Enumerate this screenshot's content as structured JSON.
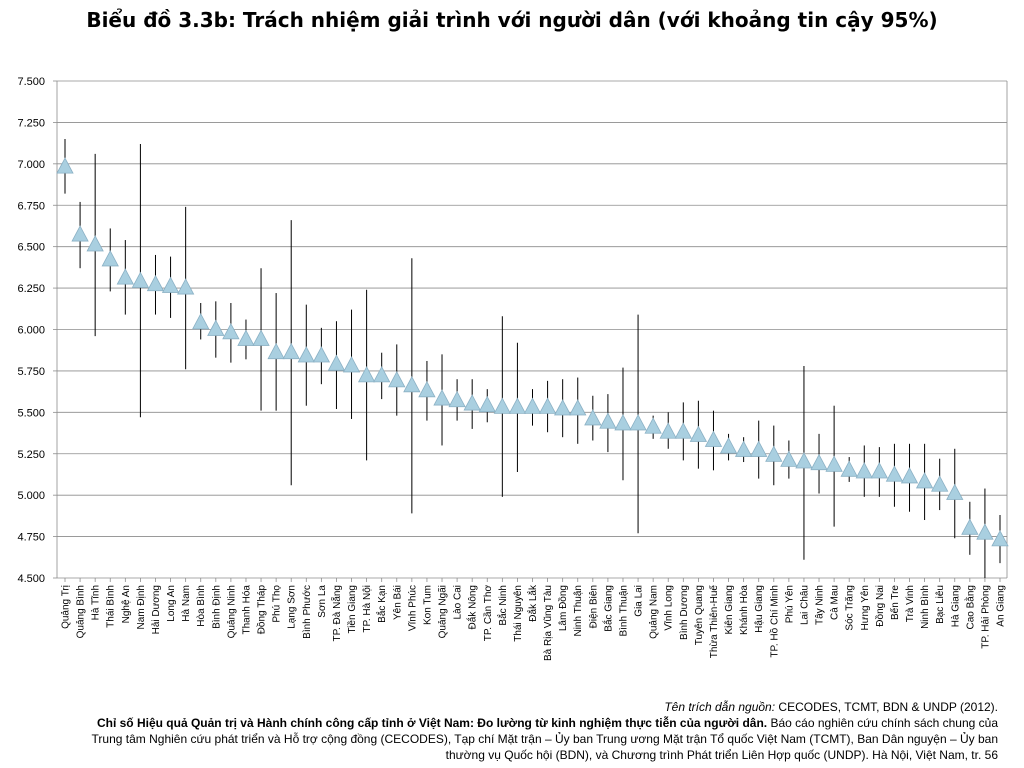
{
  "chart_data": {
    "type": "scatter",
    "title": "Biểu đồ 3.3b: Trách nhiệm giải trình với người dân (với khoảng tin cậy 95%)",
    "xlabel": "",
    "ylabel": "",
    "ylim": [
      4.5,
      7.5
    ],
    "yticks": [
      "4.500",
      "4.750",
      "5.000",
      "5.250",
      "5.500",
      "5.750",
      "6.000",
      "6.250",
      "6.500",
      "6.750",
      "7.000",
      "7.250",
      "7.500"
    ],
    "grid": true,
    "marker": "triangle",
    "marker_color": "#a9cfe0",
    "error_bar_color": "#000000",
    "points": [
      {
        "province": "Quảng Trị",
        "value": 6.98,
        "lo": 6.82,
        "hi": 7.15
      },
      {
        "province": "Quảng Bình",
        "value": 6.57,
        "lo": 6.37,
        "hi": 6.77
      },
      {
        "province": "Hà Tĩnh",
        "value": 6.51,
        "lo": 5.96,
        "hi": 7.06
      },
      {
        "province": "Thái Bình",
        "value": 6.42,
        "lo": 6.23,
        "hi": 6.61
      },
      {
        "province": "Nghệ An",
        "value": 6.31,
        "lo": 6.09,
        "hi": 6.54
      },
      {
        "province": "Nam Định",
        "value": 6.29,
        "lo": 5.47,
        "hi": 7.12
      },
      {
        "province": "Hải Dương",
        "value": 6.27,
        "lo": 6.09,
        "hi": 6.45
      },
      {
        "province": "Long An",
        "value": 6.26,
        "lo": 6.07,
        "hi": 6.44
      },
      {
        "province": "Hà Nam",
        "value": 6.25,
        "lo": 5.76,
        "hi": 6.74
      },
      {
        "province": "Hòa Bình",
        "value": 6.04,
        "lo": 5.94,
        "hi": 6.16
      },
      {
        "province": "Bình Định",
        "value": 6.0,
        "lo": 5.83,
        "hi": 6.17
      },
      {
        "province": "Quảng Ninh",
        "value": 5.98,
        "lo": 5.8,
        "hi": 6.16
      },
      {
        "province": "Thanh Hóa",
        "value": 5.94,
        "lo": 5.82,
        "hi": 6.06
      },
      {
        "province": "Đồng Tháp",
        "value": 5.94,
        "lo": 5.51,
        "hi": 6.37
      },
      {
        "province": "Phú Thọ",
        "value": 5.86,
        "lo": 5.51,
        "hi": 6.22
      },
      {
        "province": "Lạng Sơn",
        "value": 5.86,
        "lo": 5.06,
        "hi": 6.66
      },
      {
        "province": "Bình Phước",
        "value": 5.84,
        "lo": 5.54,
        "hi": 6.15
      },
      {
        "province": "Sơn La",
        "value": 5.84,
        "lo": 5.67,
        "hi": 6.01
      },
      {
        "province": "TP. Đà Nẵng",
        "value": 5.79,
        "lo": 5.52,
        "hi": 6.05
      },
      {
        "province": "Tiền Giang",
        "value": 5.78,
        "lo": 5.46,
        "hi": 6.12
      },
      {
        "province": "TP. Hà Nội",
        "value": 5.72,
        "lo": 5.21,
        "hi": 6.24
      },
      {
        "province": "Bắc Kạn",
        "value": 5.72,
        "lo": 5.58,
        "hi": 5.86
      },
      {
        "province": "Yên Bái",
        "value": 5.69,
        "lo": 5.48,
        "hi": 5.91
      },
      {
        "province": "Vĩnh Phúc",
        "value": 5.66,
        "lo": 4.89,
        "hi": 6.43
      },
      {
        "province": "Kon Tum",
        "value": 5.63,
        "lo": 5.45,
        "hi": 5.81
      },
      {
        "province": "Quảng Ngãi",
        "value": 5.58,
        "lo": 5.3,
        "hi": 5.85
      },
      {
        "province": "Lào Cai",
        "value": 5.57,
        "lo": 5.45,
        "hi": 5.7
      },
      {
        "province": "Đắk Nông",
        "value": 5.55,
        "lo": 5.4,
        "hi": 5.7
      },
      {
        "province": "TP. Cần Thơ",
        "value": 5.54,
        "lo": 5.44,
        "hi": 5.64
      },
      {
        "province": "Bắc Ninh",
        "value": 5.53,
        "lo": 4.99,
        "hi": 6.08
      },
      {
        "province": "Thái Nguyên",
        "value": 5.53,
        "lo": 5.14,
        "hi": 5.92
      },
      {
        "province": "Đắk Lắk",
        "value": 5.53,
        "lo": 5.42,
        "hi": 5.64
      },
      {
        "province": "Bà Rịa Vũng Tàu",
        "value": 5.53,
        "lo": 5.38,
        "hi": 5.69
      },
      {
        "province": "Lâm Đồng",
        "value": 5.52,
        "lo": 5.35,
        "hi": 5.7
      },
      {
        "province": "Ninh Thuận",
        "value": 5.52,
        "lo": 5.31,
        "hi": 5.71
      },
      {
        "province": "Điện Biên",
        "value": 5.46,
        "lo": 5.33,
        "hi": 5.6
      },
      {
        "province": "Bắc Giang",
        "value": 5.44,
        "lo": 5.26,
        "hi": 5.61
      },
      {
        "province": "Bình Thuận",
        "value": 5.43,
        "lo": 5.09,
        "hi": 5.77
      },
      {
        "province": "Gia Lai",
        "value": 5.43,
        "lo": 4.77,
        "hi": 6.09
      },
      {
        "province": "Quảng Nam",
        "value": 5.41,
        "lo": 5.34,
        "hi": 5.48
      },
      {
        "province": "Vĩnh Long",
        "value": 5.38,
        "lo": 5.28,
        "hi": 5.5
      },
      {
        "province": "Bình Dương",
        "value": 5.38,
        "lo": 5.21,
        "hi": 5.56
      },
      {
        "province": "Tuyên Quang",
        "value": 5.36,
        "lo": 5.16,
        "hi": 5.57
      },
      {
        "province": "Thừa Thiên-Huế",
        "value": 5.33,
        "lo": 5.15,
        "hi": 5.51
      },
      {
        "province": "Kiên Giang",
        "value": 5.29,
        "lo": 5.21,
        "hi": 5.37
      },
      {
        "province": "Khánh Hòa",
        "value": 5.27,
        "lo": 5.2,
        "hi": 5.35
      },
      {
        "province": "Hậu Giang",
        "value": 5.27,
        "lo": 5.1,
        "hi": 5.45
      },
      {
        "province": "TP. Hồ Chí Minh",
        "value": 5.24,
        "lo": 5.06,
        "hi": 5.42
      },
      {
        "province": "Phú Yên",
        "value": 5.21,
        "lo": 5.1,
        "hi": 5.33
      },
      {
        "province": "Lai Châu",
        "value": 5.2,
        "lo": 4.61,
        "hi": 5.78
      },
      {
        "province": "Tây Ninh",
        "value": 5.19,
        "lo": 5.01,
        "hi": 5.37
      },
      {
        "province": "Cà Mau",
        "value": 5.18,
        "lo": 4.81,
        "hi": 5.54
      },
      {
        "province": "Sóc Trăng",
        "value": 5.15,
        "lo": 5.08,
        "hi": 5.23
      },
      {
        "province": "Hưng Yên",
        "value": 5.14,
        "lo": 4.99,
        "hi": 5.3
      },
      {
        "province": "Đồng Nai",
        "value": 5.14,
        "lo": 4.99,
        "hi": 5.29
      },
      {
        "province": "Bến Tre",
        "value": 5.12,
        "lo": 4.93,
        "hi": 5.31
      },
      {
        "province": "Trà Vinh",
        "value": 5.11,
        "lo": 4.9,
        "hi": 5.31
      },
      {
        "province": "Ninh Bình",
        "value": 5.08,
        "lo": 4.85,
        "hi": 5.31
      },
      {
        "province": "Bạc Liêu",
        "value": 5.06,
        "lo": 4.91,
        "hi": 5.22
      },
      {
        "province": "Hà Giang",
        "value": 5.01,
        "lo": 4.74,
        "hi": 5.28
      },
      {
        "province": "Cao Bằng",
        "value": 4.8,
        "lo": 4.64,
        "hi": 4.96
      },
      {
        "province": "TP. Hải Phòng",
        "value": 4.77,
        "lo": 4.5,
        "hi": 5.04
      },
      {
        "province": "An Giang",
        "value": 4.73,
        "lo": 4.59,
        "hi": 4.88
      }
    ]
  },
  "source_note": {
    "lead_italic": "Tên trích dẫn nguồn:",
    "lead_rest": " CECODES, TCMT, BDN & UNDP (2012).",
    "title_bold": "Chỉ số Hiệu quả Quản trị và Hành chính công cấp tỉnh ở Việt Nam: Đo lường từ kinh nghiệm thực tiễn của người dân.",
    "rest_1": " Báo cáo nghiên cứu chính sách chung của",
    "line_3": "Trung tâm Nghiên cứu phát triển và Hỗ trợ cộng đồng (CECODES), Tạp chí Mặt trận – Ủy ban Trung ương Mặt trận Tổ quốc Việt Nam (TCMT), Ban Dân nguyện – Ủy ban",
    "line_4": "thường vụ Quốc hội (BDN), và Chương trình Phát triển Liên Hợp quốc (UNDP). Hà Nội, Việt Nam, tr. 56"
  }
}
